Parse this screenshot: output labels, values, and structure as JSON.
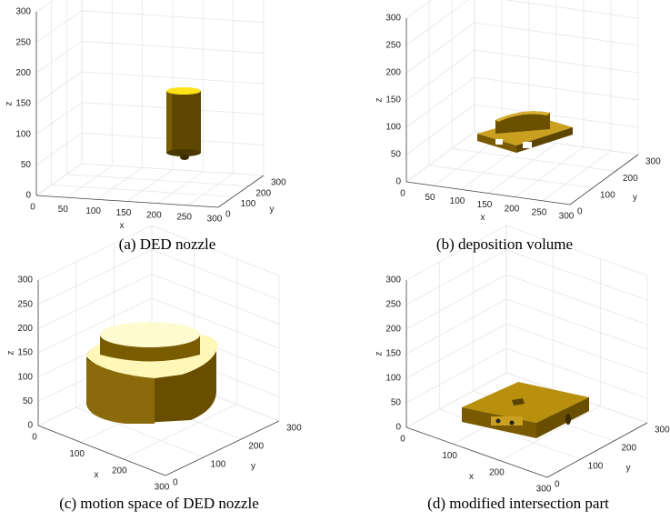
{
  "panels": [
    {
      "caption": "(a) DED nozzle",
      "x_label": "x",
      "y_label": "y",
      "z_label": "z",
      "x_ticks": [
        0,
        50,
        100,
        150,
        200,
        250,
        300
      ],
      "y_ticks": [
        0,
        100,
        200,
        300
      ],
      "z_ticks": [
        0,
        50,
        100,
        150,
        200,
        250,
        300
      ]
    },
    {
      "caption": "(b) deposition volume",
      "x_label": "x",
      "y_label": "y",
      "z_label": "z",
      "x_ticks": [
        0,
        50,
        100,
        150,
        200,
        250,
        300
      ],
      "y_ticks": [
        0,
        100,
        200,
        300
      ],
      "z_ticks": [
        0,
        50,
        100,
        150,
        200,
        250,
        300
      ]
    },
    {
      "caption": "(c) motion space of DED nozzle",
      "x_label": "x",
      "y_label": "y",
      "z_label": "z",
      "x_ticks": [
        0,
        100,
        200,
        300
      ],
      "y_ticks": [
        0,
        100,
        200,
        300
      ],
      "z_ticks": [
        0,
        50,
        100,
        150,
        200,
        250,
        300
      ]
    },
    {
      "caption": "(d) modified intersection part",
      "x_label": "x",
      "y_label": "y",
      "z_label": "z",
      "x_ticks": [
        0,
        100,
        200,
        300
      ],
      "y_ticks": [
        0,
        100,
        200,
        300
      ],
      "z_ticks": [
        0,
        50,
        100,
        150,
        200,
        250,
        300
      ]
    }
  ]
}
